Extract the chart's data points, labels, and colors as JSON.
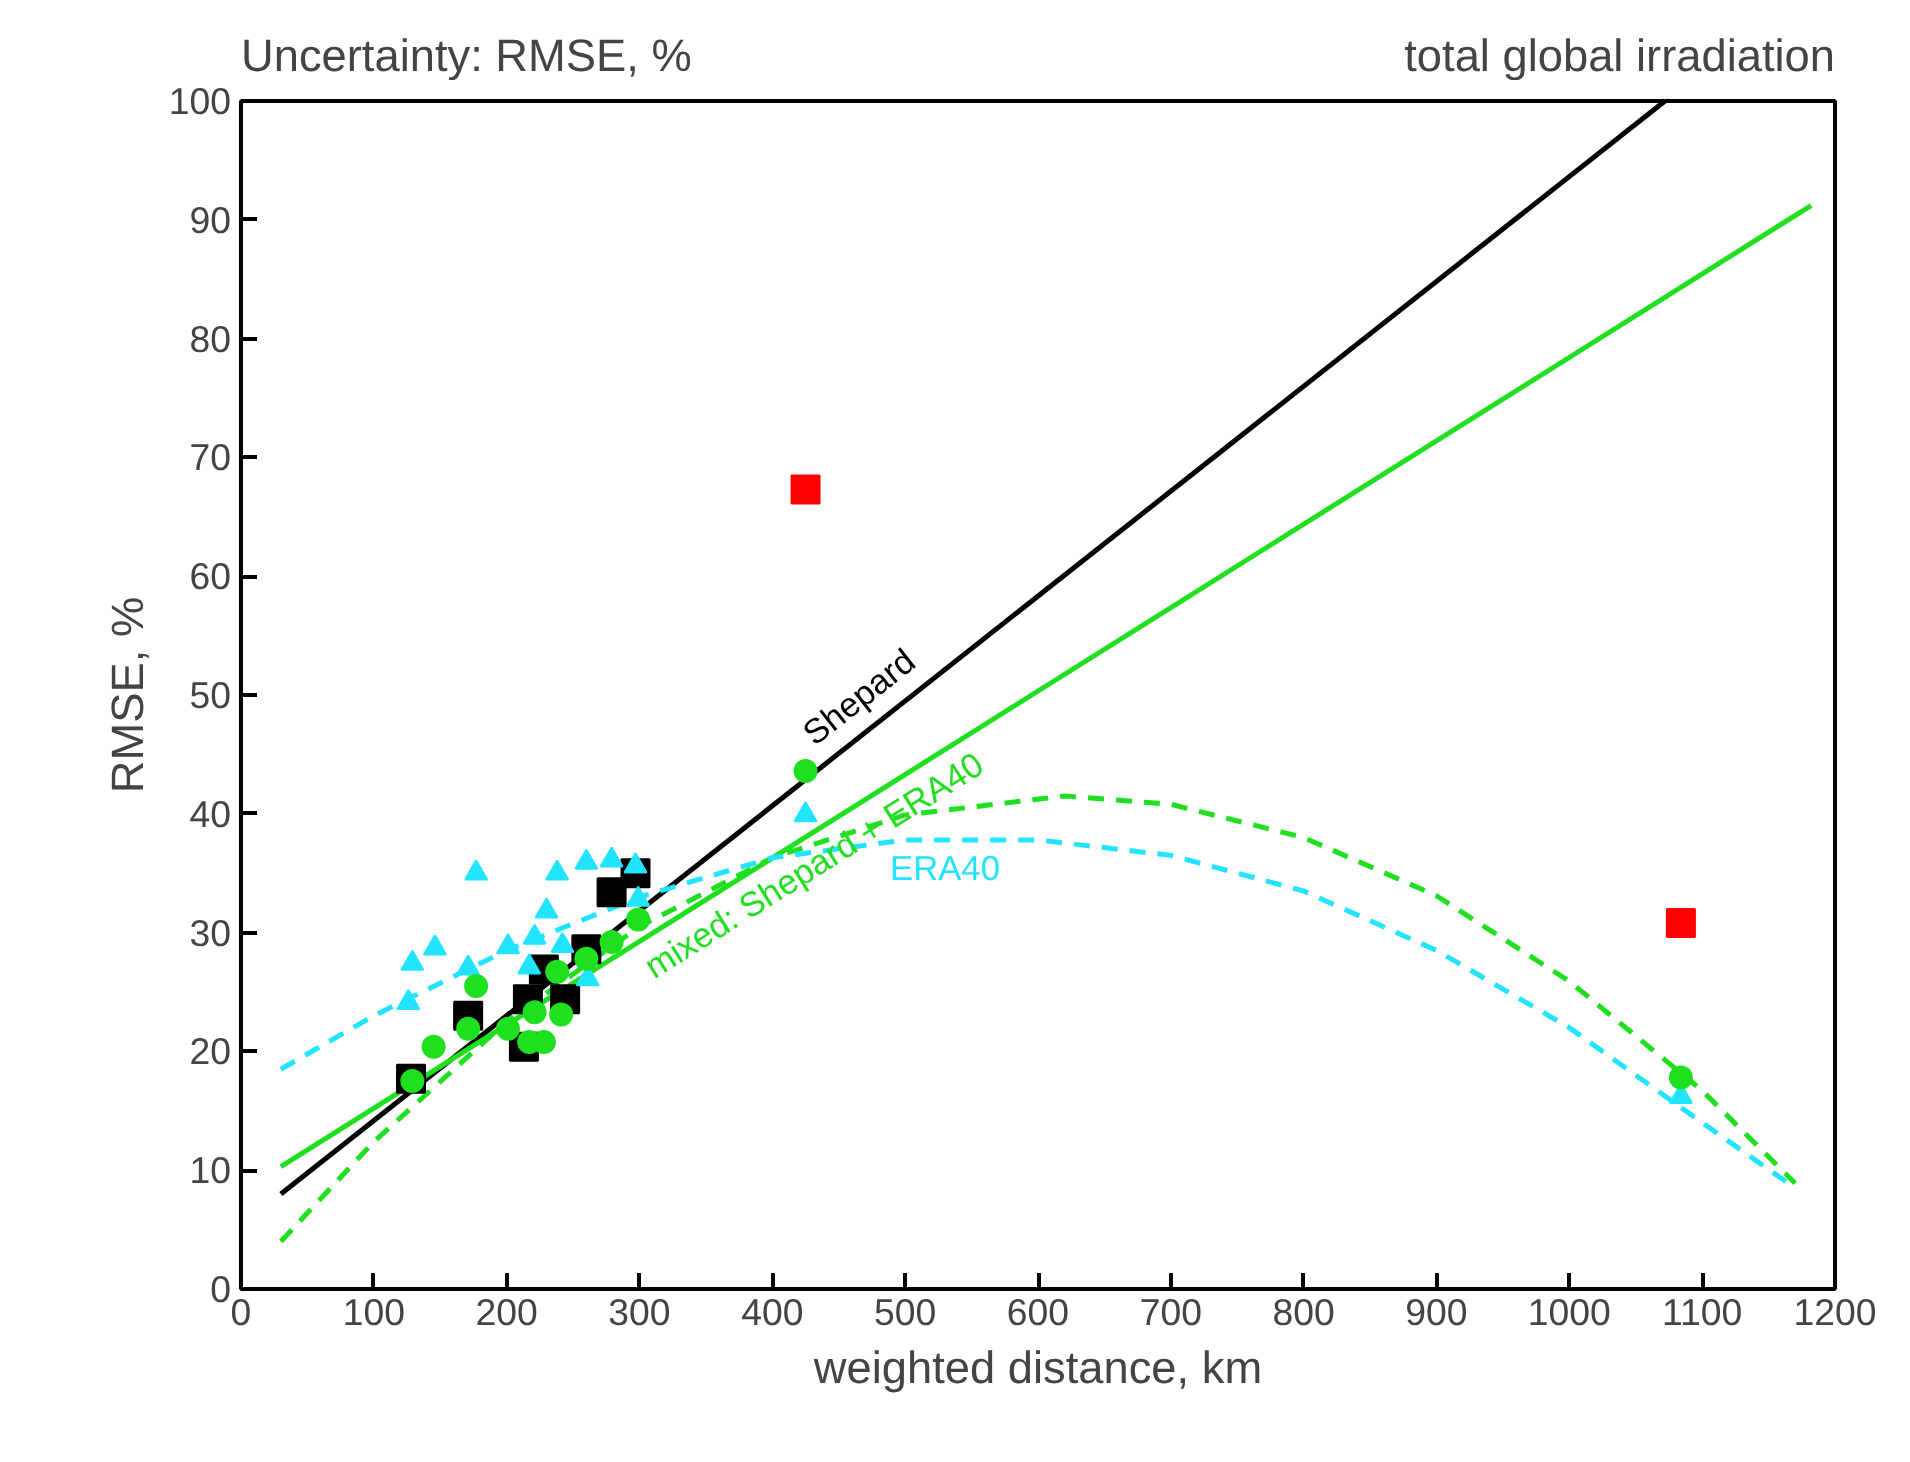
{
  "chart_data": {
    "type": "scatter",
    "title": "Uncertainty: RMSE, %",
    "subtitle": "total global irradiation",
    "xlabel": "weighted distance, km",
    "ylabel": "RMSE, %",
    "xlim": [
      0,
      1200
    ],
    "ylim": [
      0,
      100
    ],
    "xticks": [
      0,
      100,
      200,
      300,
      400,
      500,
      600,
      700,
      800,
      900,
      1000,
      1100,
      1200
    ],
    "yticks": [
      0,
      10,
      20,
      30,
      40,
      50,
      60,
      70,
      80,
      90,
      100
    ],
    "legend": false,
    "grid": false,
    "series": [
      {
        "type": "line",
        "name": "Shepard",
        "color": "#000000",
        "line_style": "solid",
        "marker": "none",
        "x": [
          30,
          1072
        ],
        "values": [
          8,
          100
        ]
      },
      {
        "type": "line",
        "name": "mixed: Shepard + ERA40",
        "color": "#1ee01e",
        "line_style": "solid",
        "marker": "none",
        "x": [
          30,
          1182
        ],
        "values": [
          10.3,
          91.2
        ]
      },
      {
        "type": "line",
        "color": "#1ee01e",
        "line_style": "dashed",
        "marker": "none",
        "x": [
          30,
          100,
          200,
          300,
          400,
          500,
          620,
          700,
          800,
          900,
          1000,
          1100,
          1170
        ],
        "values": [
          4.0,
          12.4,
          22.5,
          30.5,
          36.3,
          39.9,
          41.5,
          40.8,
          38.0,
          33.1,
          25.9,
          16.7,
          8.9
        ]
      },
      {
        "type": "line",
        "name": "ERA40",
        "color": "#22e4ff",
        "line_style": "dashed",
        "marker": "none",
        "x": [
          30,
          100,
          200,
          300,
          400,
          500,
          600,
          700,
          800,
          900,
          1000,
          1100,
          1170
        ],
        "values": [
          18.5,
          23,
          28.5,
          33,
          36.3,
          37.8,
          37.8,
          36.5,
          33.5,
          28.5,
          22,
          14,
          8.5
        ]
      },
      {
        "color": "#000000",
        "marker": "square",
        "x": [
          128,
          171,
          213,
          216,
          244,
          260,
          279,
          297,
          228
        ],
        "values": [
          17.7,
          23.0,
          20.4,
          24.4,
          24.4,
          28.6,
          33.4,
          35.0,
          26.9
        ]
      },
      {
        "color": "#22e4ff",
        "marker": "triangle",
        "x": [
          129,
          146,
          126,
          171,
          177,
          201,
          217,
          221,
          230,
          238,
          242,
          260,
          261,
          279,
          297,
          299,
          425,
          1084
        ],
        "values": [
          27.4,
          28.7,
          24.1,
          27.0,
          35.0,
          28.8,
          27.1,
          29.6,
          31.8,
          35.0,
          28.9,
          35.9,
          26.1,
          36.1,
          35.6,
          32.8,
          39.9,
          16.2
        ]
      },
      {
        "color": "#1ee01e",
        "marker": "circle",
        "x": [
          129,
          145,
          171,
          177,
          201,
          217,
          228,
          221,
          238,
          241,
          260,
          279,
          299,
          425,
          1084
        ],
        "values": [
          17.5,
          20.4,
          21.9,
          25.5,
          21.9,
          20.8,
          20.8,
          23.3,
          26.7,
          23.1,
          27.8,
          29.2,
          31.1,
          43.6,
          17.8
        ]
      },
      {
        "color": "#ff0000",
        "marker": "square",
        "x": [
          425,
          1084
        ],
        "values": [
          67.3,
          30.8
        ]
      }
    ]
  }
}
